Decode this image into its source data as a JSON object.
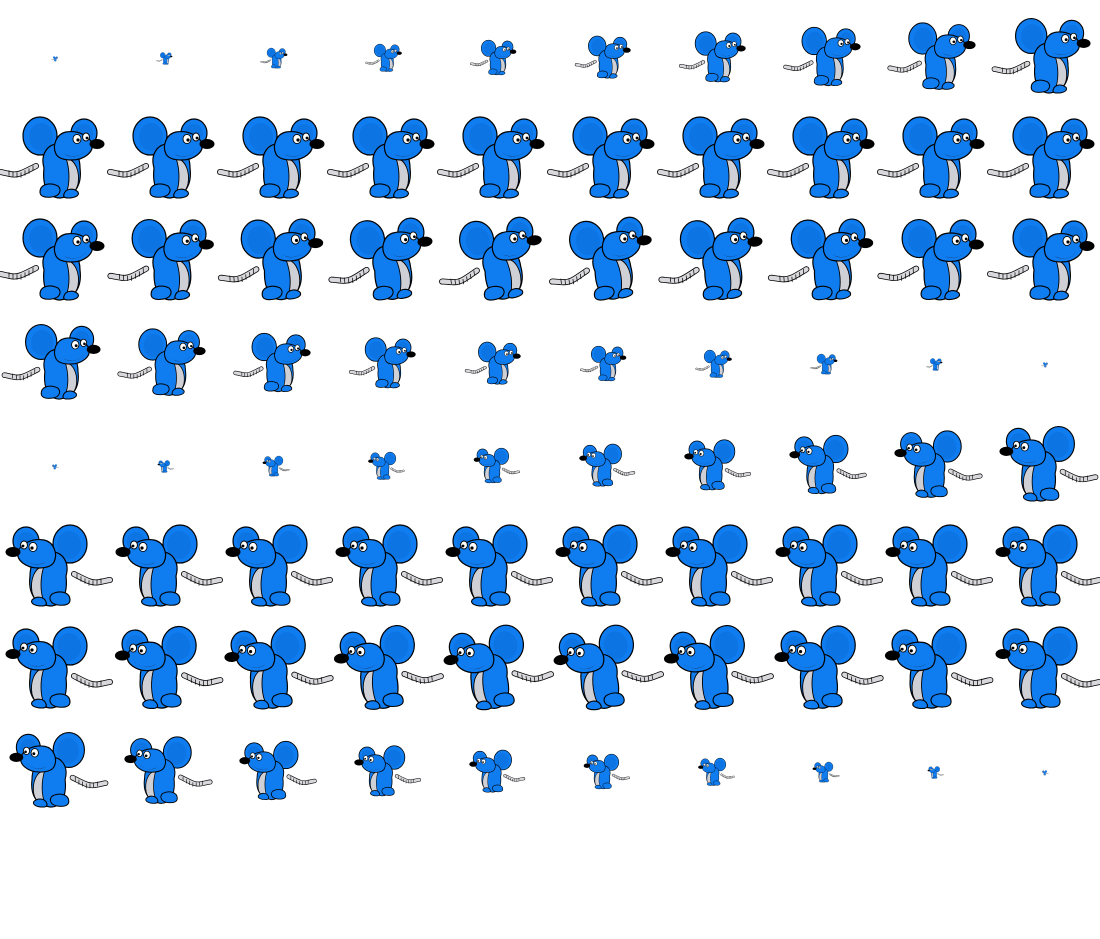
{
  "sprite_sheet": {
    "sprite": "blue-mouse",
    "columns": 10,
    "colors": {
      "body": "#0f7cf0",
      "outline": "#000000",
      "belly": "#cfcfd6",
      "tail": "#d9d9dd",
      "nose": "#000000",
      "eye": "#ffffff",
      "mouth": "#1a1a1a"
    },
    "rows": [
      {
        "facing": "right",
        "frames": [
          {
            "scale": 0.06,
            "tilt": 0
          },
          {
            "scale": 0.15,
            "tilt": 0
          },
          {
            "scale": 0.25,
            "tilt": 0
          },
          {
            "scale": 0.34,
            "tilt": 0
          },
          {
            "scale": 0.43,
            "tilt": 0
          },
          {
            "scale": 0.52,
            "tilt": 0
          },
          {
            "scale": 0.62,
            "tilt": 0
          },
          {
            "scale": 0.72,
            "tilt": 0
          },
          {
            "scale": 0.82,
            "tilt": 0
          },
          {
            "scale": 0.92,
            "tilt": 0
          }
        ]
      },
      {
        "facing": "right",
        "frames": [
          {
            "scale": 1,
            "tilt": 0
          },
          {
            "scale": 1,
            "tilt": 0
          },
          {
            "scale": 1,
            "tilt": 0
          },
          {
            "scale": 1,
            "tilt": 0
          },
          {
            "scale": 1,
            "tilt": 0
          },
          {
            "scale": 1,
            "tilt": 0
          },
          {
            "scale": 1,
            "tilt": 0
          },
          {
            "scale": 1,
            "tilt": 0
          },
          {
            "scale": 1,
            "tilt": 0
          },
          {
            "scale": 1,
            "tilt": 0
          }
        ]
      },
      {
        "facing": "right",
        "frames": [
          {
            "scale": 1,
            "tilt": 0
          },
          {
            "scale": 1,
            "tilt": -2
          },
          {
            "scale": 1,
            "tilt": -4
          },
          {
            "scale": 1,
            "tilt": -6
          },
          {
            "scale": 1,
            "tilt": -8
          },
          {
            "scale": 1,
            "tilt": -8
          },
          {
            "scale": 1,
            "tilt": -6
          },
          {
            "scale": 1,
            "tilt": -4
          },
          {
            "scale": 1,
            "tilt": -2
          },
          {
            "scale": 1,
            "tilt": 0
          }
        ]
      },
      {
        "facing": "right",
        "frames": [
          {
            "scale": 0.92,
            "tilt": 0
          },
          {
            "scale": 0.82,
            "tilt": 0
          },
          {
            "scale": 0.72,
            "tilt": 0
          },
          {
            "scale": 0.62,
            "tilt": 0
          },
          {
            "scale": 0.52,
            "tilt": 0
          },
          {
            "scale": 0.43,
            "tilt": 0
          },
          {
            "scale": 0.34,
            "tilt": 0
          },
          {
            "scale": 0.25,
            "tilt": 0
          },
          {
            "scale": 0.15,
            "tilt": 0
          },
          {
            "scale": 0.06,
            "tilt": 0
          }
        ]
      },
      {
        "facing": "left",
        "frames": [
          {
            "scale": 0.06,
            "tilt": 0
          },
          {
            "scale": 0.15,
            "tilt": 0
          },
          {
            "scale": 0.25,
            "tilt": 0
          },
          {
            "scale": 0.34,
            "tilt": 0
          },
          {
            "scale": 0.43,
            "tilt": 0
          },
          {
            "scale": 0.52,
            "tilt": 0
          },
          {
            "scale": 0.62,
            "tilt": 0
          },
          {
            "scale": 0.72,
            "tilt": 0
          },
          {
            "scale": 0.82,
            "tilt": 0
          },
          {
            "scale": 0.92,
            "tilt": 0
          }
        ]
      },
      {
        "facing": "left",
        "frames": [
          {
            "scale": 1,
            "tilt": 0
          },
          {
            "scale": 1,
            "tilt": 0
          },
          {
            "scale": 1,
            "tilt": 0
          },
          {
            "scale": 1,
            "tilt": 0
          },
          {
            "scale": 1,
            "tilt": 0
          },
          {
            "scale": 1,
            "tilt": 0
          },
          {
            "scale": 1,
            "tilt": 0
          },
          {
            "scale": 1,
            "tilt": 0
          },
          {
            "scale": 1,
            "tilt": 0
          },
          {
            "scale": 1,
            "tilt": 0
          }
        ]
      },
      {
        "facing": "left",
        "frames": [
          {
            "scale": 1,
            "tilt": 0
          },
          {
            "scale": 1,
            "tilt": -2
          },
          {
            "scale": 1,
            "tilt": -4
          },
          {
            "scale": 1,
            "tilt": -6
          },
          {
            "scale": 1,
            "tilt": -8
          },
          {
            "scale": 1,
            "tilt": -8
          },
          {
            "scale": 1,
            "tilt": -6
          },
          {
            "scale": 1,
            "tilt": -4
          },
          {
            "scale": 1,
            "tilt": -2
          },
          {
            "scale": 1,
            "tilt": 0
          }
        ]
      },
      {
        "facing": "left",
        "frames": [
          {
            "scale": 0.92,
            "tilt": 0
          },
          {
            "scale": 0.82,
            "tilt": 0
          },
          {
            "scale": 0.72,
            "tilt": 0
          },
          {
            "scale": 0.62,
            "tilt": 0
          },
          {
            "scale": 0.52,
            "tilt": 0
          },
          {
            "scale": 0.43,
            "tilt": 0
          },
          {
            "scale": 0.34,
            "tilt": 0
          },
          {
            "scale": 0.25,
            "tilt": 0
          },
          {
            "scale": 0.15,
            "tilt": 0
          },
          {
            "scale": 0.06,
            "tilt": 0
          }
        ]
      }
    ]
  }
}
